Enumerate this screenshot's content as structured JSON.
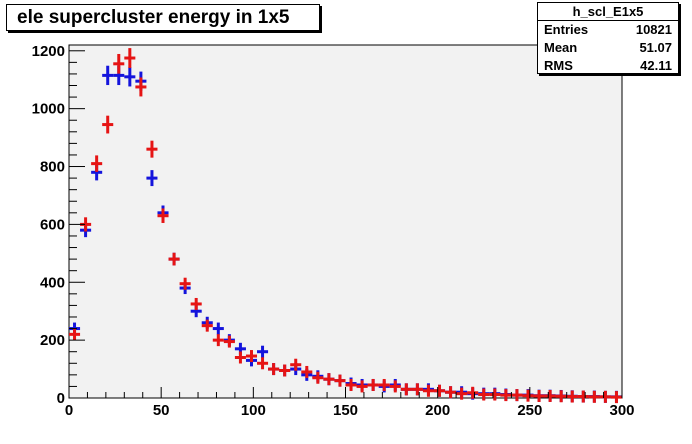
{
  "title": "ele supercluster energy in 1x5",
  "stats": {
    "name": "h_scl_E1x5",
    "rows": [
      {
        "label": "Entries",
        "value": "10821"
      },
      {
        "label": "Mean",
        "value": "51.07"
      },
      {
        "label": "RMS",
        "value": "42.11"
      }
    ]
  },
  "colors": {
    "series_blue": "#1414dc",
    "series_red": "#e61414",
    "frame_bg": "#f2f2f2"
  },
  "chart_data": {
    "type": "scatter",
    "title": "ele supercluster energy in 1x5",
    "xlim": [
      0,
      300
    ],
    "ylim": [
      0,
      1220
    ],
    "xticks": [
      0,
      50,
      100,
      150,
      200,
      250,
      300
    ],
    "yticks": [
      0,
      200,
      400,
      600,
      800,
      1000,
      1200
    ],
    "bin_width": 6,
    "grid": false,
    "series": [
      {
        "color": "blue",
        "x": [
          3,
          9,
          15,
          21,
          27,
          33,
          39,
          45,
          51,
          57,
          63,
          69,
          75,
          81,
          87,
          93,
          99,
          105,
          111,
          117,
          123,
          129,
          135,
          141,
          147,
          153,
          159,
          165,
          171,
          177,
          183,
          189,
          195,
          201,
          207,
          213,
          219,
          225,
          231,
          237,
          243,
          249,
          255,
          261,
          267,
          273,
          279,
          285,
          291,
          297
        ],
        "y": [
          240,
          580,
          780,
          1115,
          1115,
          1110,
          1095,
          760,
          640,
          480,
          380,
          300,
          260,
          240,
          200,
          170,
          130,
          160,
          100,
          95,
          100,
          80,
          75,
          65,
          60,
          50,
          45,
          45,
          40,
          45,
          30,
          30,
          30,
          25,
          20,
          20,
          15,
          15,
          15,
          12,
          10,
          10,
          8,
          8,
          7,
          6,
          5,
          5,
          4,
          4
        ]
      },
      {
        "color": "red",
        "x": [
          3,
          9,
          15,
          21,
          27,
          33,
          39,
          45,
          51,
          57,
          63,
          69,
          75,
          81,
          87,
          93,
          99,
          105,
          111,
          117,
          123,
          129,
          135,
          141,
          147,
          153,
          159,
          165,
          171,
          177,
          183,
          189,
          195,
          201,
          207,
          213,
          219,
          225,
          231,
          237,
          243,
          249,
          255,
          261,
          267,
          273,
          279,
          285,
          291,
          297
        ],
        "y": [
          220,
          600,
          810,
          945,
          1155,
          1175,
          1075,
          860,
          630,
          480,
          395,
          325,
          250,
          200,
          195,
          140,
          145,
          120,
          100,
          95,
          115,
          90,
          70,
          65,
          60,
          45,
          40,
          45,
          45,
          40,
          30,
          30,
          25,
          25,
          20,
          15,
          18,
          12,
          12,
          10,
          10,
          8,
          7,
          7,
          6,
          5,
          5,
          4,
          4,
          3
        ]
      }
    ]
  }
}
